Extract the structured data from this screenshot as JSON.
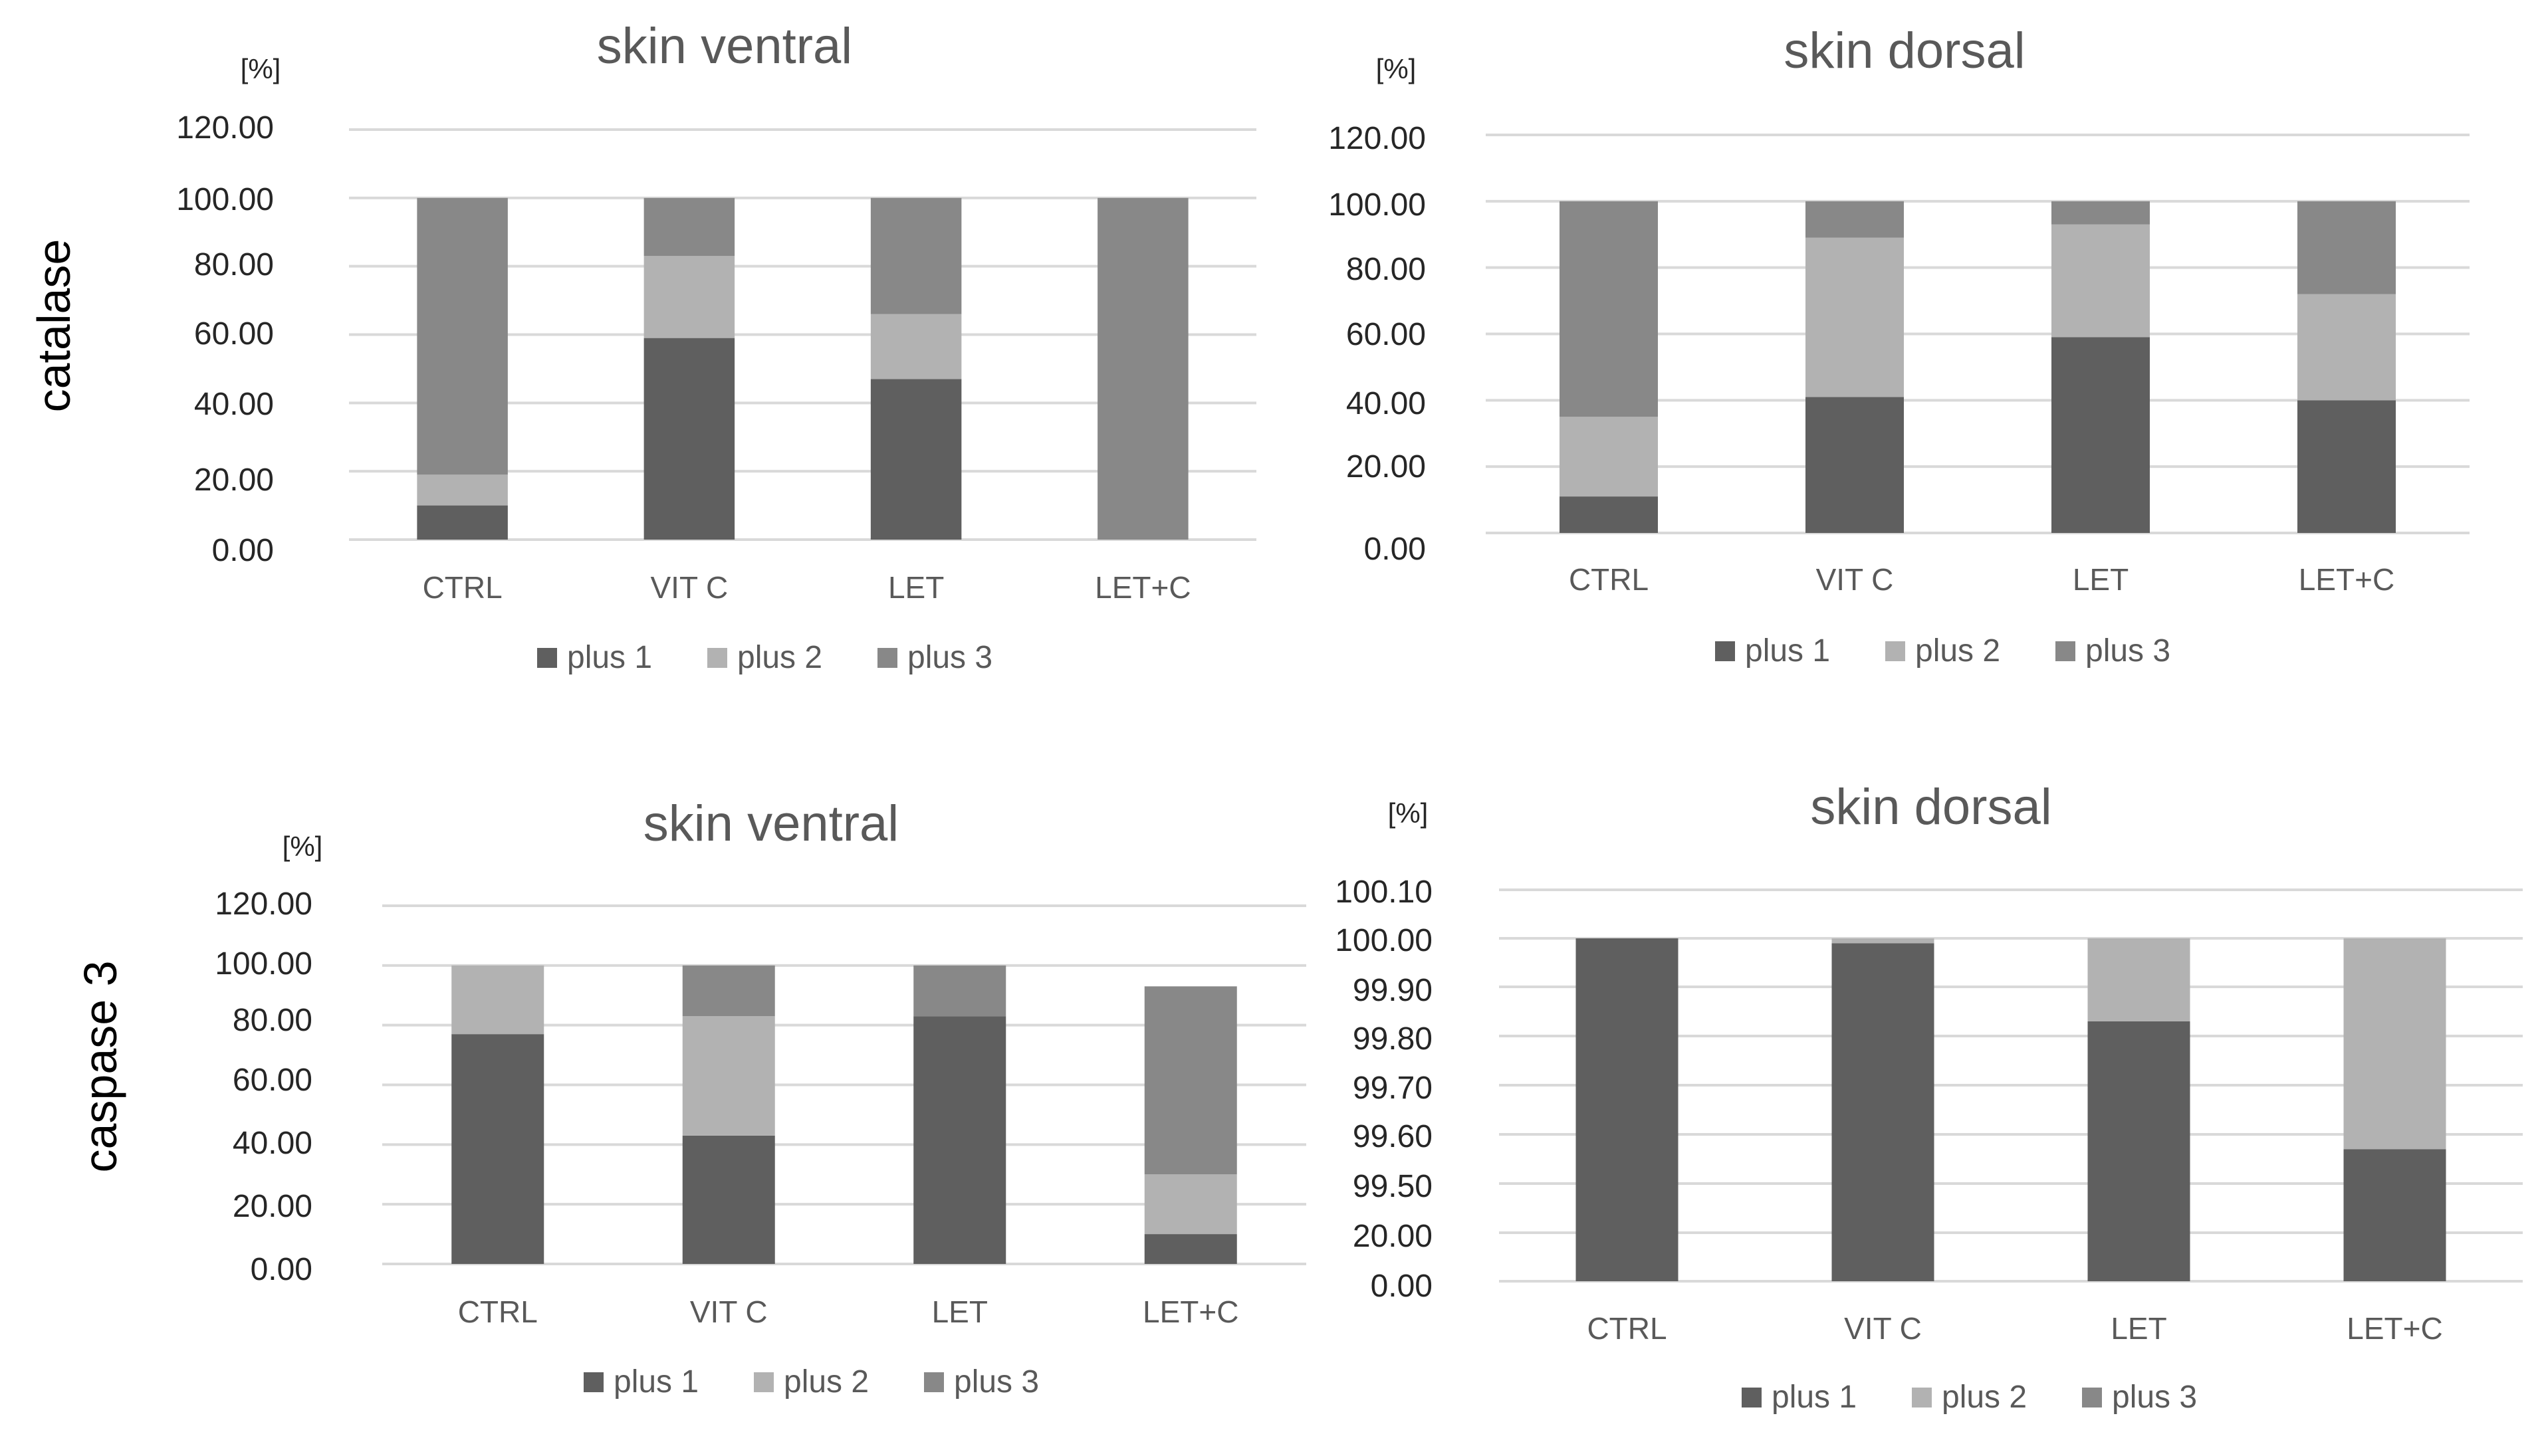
{
  "row_labels": [
    "catalase",
    "caspase 3"
  ],
  "colors": {
    "plus 1": "#5f5f5f",
    "plus 2": "#b2b2b2",
    "plus 3": "#888888",
    "grid": "#d9d9d9"
  },
  "chart_data": [
    {
      "type": "bar",
      "stacked": true,
      "title": "skin ventral",
      "unit_label": "[%]",
      "categories": [
        "CTRL",
        "VIT C",
        "LET",
        "LET+C"
      ],
      "ylim": [
        0,
        120
      ],
      "y_tick_labels": [
        "0.00",
        "20.00",
        "40.00",
        "60.00",
        "80.00",
        "100.00",
        "120.00"
      ],
      "series": [
        {
          "name": "plus 1",
          "values": [
            10,
            59,
            47,
            0
          ]
        },
        {
          "name": "plus 2",
          "values": [
            9,
            24,
            19,
            0
          ]
        },
        {
          "name": "plus 3",
          "values": [
            81,
            17,
            34,
            100
          ]
        }
      ],
      "legend": "bottom",
      "grid": true
    },
    {
      "type": "bar",
      "stacked": true,
      "title": "skin dorsal",
      "unit_label": "[%]",
      "categories": [
        "CTRL",
        "VIT C",
        "LET",
        "LET+C"
      ],
      "ylim": [
        0,
        120
      ],
      "y_tick_labels": [
        "0.00",
        "20.00",
        "40.00",
        "60.00",
        "80.00",
        "100.00",
        "120.00"
      ],
      "series": [
        {
          "name": "plus 1",
          "values": [
            11,
            41,
            59,
            40
          ]
        },
        {
          "name": "plus 2",
          "values": [
            24,
            48,
            34,
            32
          ]
        },
        {
          "name": "plus 3",
          "values": [
            65,
            11,
            7,
            28
          ]
        }
      ],
      "legend": "bottom",
      "grid": true
    },
    {
      "type": "bar",
      "stacked": true,
      "title": "skin ventral",
      "unit_label": "[%]",
      "categories": [
        "CTRL",
        "VIT C",
        "LET",
        "LET+C"
      ],
      "ylim": [
        0,
        120
      ],
      "y_tick_labels": [
        "0.00",
        "20.00",
        "40.00",
        "60.00",
        "80.00",
        "100.00",
        "120.00"
      ],
      "series": [
        {
          "name": "plus 1",
          "values": [
            77,
            43,
            83,
            10
          ]
        },
        {
          "name": "plus 2",
          "values": [
            23,
            40,
            0,
            20
          ]
        },
        {
          "name": "plus 3",
          "values": [
            0,
            17,
            17,
            63
          ]
        }
      ],
      "legend": "bottom",
      "grid": true
    },
    {
      "type": "bar",
      "stacked": true,
      "title": "skin dorsal",
      "unit_label": "[%]",
      "categories": [
        "CTRL",
        "VIT C",
        "LET",
        "LET+C"
      ],
      "y_tick_labels": [
        "0.00",
        "20.00",
        "99.50",
        "99.60",
        "99.70",
        "99.80",
        "99.90",
        "100.00",
        "100.10"
      ],
      "series": [
        {
          "name": "plus 1",
          "values": [
            100,
            99.99,
            99.83,
            99.57
          ]
        },
        {
          "name": "plus 2",
          "values": [
            0,
            0.01,
            0.17,
            0.43
          ]
        },
        {
          "name": "plus 3",
          "values": [
            0,
            0,
            0,
            0
          ]
        }
      ],
      "legend": "bottom",
      "grid": true
    }
  ]
}
